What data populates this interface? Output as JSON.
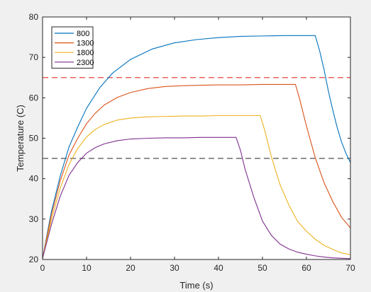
{
  "chart_data": {
    "type": "line",
    "title": "",
    "xlabel": "Time (s)",
    "ylabel": "Temperature (C)",
    "xlim": [
      0,
      70
    ],
    "ylim": [
      20,
      80
    ],
    "xticks": [
      0,
      10,
      20,
      30,
      40,
      50,
      60,
      70
    ],
    "yticks": [
      20,
      30,
      40,
      50,
      60,
      70,
      80
    ],
    "grid": false,
    "legend_position": "top-left",
    "series": [
      {
        "name": "800",
        "color": "#0072bd",
        "x": [
          0,
          2,
          4,
          6,
          8,
          10,
          13,
          16,
          20,
          25,
          30,
          35,
          40,
          45,
          50,
          55,
          59,
          62,
          63,
          64,
          65,
          66,
          67,
          68,
          69,
          70
        ],
        "y": [
          20.3,
          31.8,
          40.6,
          47.8,
          52.8,
          57.4,
          62.5,
          66.2,
          69.5,
          72.1,
          73.6,
          74.4,
          74.9,
          75.2,
          75.3,
          75.4,
          75.4,
          75.4,
          71.6,
          67.0,
          61.6,
          56.9,
          52.6,
          49.0,
          46.2,
          44.0
        ]
      },
      {
        "name": "1300",
        "color": "#d95319",
        "x": [
          0,
          2,
          4,
          6,
          8,
          10,
          12,
          14,
          17,
          20,
          24,
          28,
          32,
          36,
          40,
          45,
          50,
          54,
          57.5,
          58.5,
          60,
          62,
          64,
          66,
          68,
          70
        ],
        "y": [
          20.3,
          31.0,
          39.4,
          45.8,
          50.0,
          53.6,
          56.2,
          58.2,
          60.1,
          61.3,
          62.3,
          62.8,
          63.0,
          63.1,
          63.2,
          63.2,
          63.3,
          63.3,
          63.3,
          59.5,
          53.0,
          45.2,
          39.0,
          34.3,
          30.4,
          27.8
        ]
      },
      {
        "name": "1800",
        "color": "#edb120",
        "x": [
          0,
          2,
          4,
          6,
          8,
          10,
          12,
          14,
          17,
          20,
          24,
          28,
          32,
          36,
          40,
          45,
          49.5,
          50.5,
          52,
          54,
          56,
          58,
          60,
          62,
          64,
          66,
          68,
          70
        ],
        "y": [
          20.3,
          29.8,
          37.6,
          43.5,
          47.5,
          50.3,
          52.2,
          53.4,
          54.5,
          55.0,
          55.3,
          55.4,
          55.5,
          55.5,
          55.6,
          55.6,
          55.6,
          52.0,
          45.5,
          38.5,
          33.5,
          29.4,
          27.0,
          25.0,
          23.5,
          22.5,
          21.6,
          21.2
        ]
      },
      {
        "name": "2300",
        "color": "#7e2f8e",
        "x": [
          0,
          2,
          4,
          6,
          8,
          10,
          12,
          14,
          17,
          20,
          24,
          28,
          32,
          36,
          40,
          44,
          45,
          46,
          48,
          50,
          52,
          54,
          56,
          58,
          60,
          62,
          64,
          66,
          68,
          70
        ],
        "y": [
          20.3,
          28.6,
          35.6,
          40.8,
          44.0,
          46.3,
          47.7,
          48.6,
          49.4,
          49.8,
          50.0,
          50.1,
          50.1,
          50.2,
          50.2,
          50.2,
          47.0,
          42.5,
          35.5,
          29.5,
          26.0,
          23.8,
          22.6,
          21.8,
          21.3,
          20.9,
          20.6,
          20.4,
          20.3,
          20.2
        ]
      }
    ],
    "reference_lines": [
      {
        "axis": "y",
        "value": 65,
        "color": "#e8453c",
        "style": "dashed"
      },
      {
        "axis": "y",
        "value": 45,
        "color": "#3d3d3d",
        "style": "dashed"
      }
    ]
  }
}
